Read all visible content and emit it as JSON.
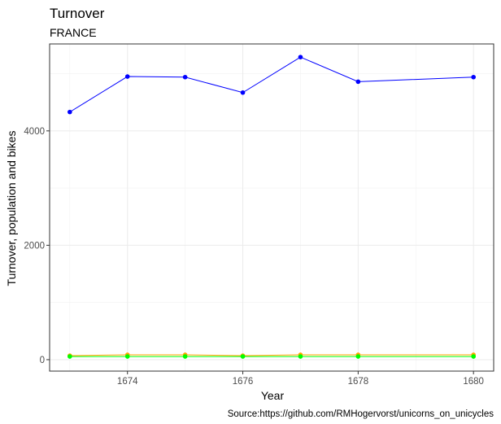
{
  "chart_data": {
    "type": "line",
    "title": "Turnover",
    "subtitle": "FRANCE",
    "xlabel": "Year",
    "ylabel": "Turnover, population and bikes",
    "caption": "Source:https://github.com/RMHogervorst/unicorns_on_unicycles",
    "x": [
      1673,
      1674,
      1675,
      1676,
      1677,
      1678,
      1680
    ],
    "x_ticks": [
      1674,
      1676,
      1678,
      1680
    ],
    "y_ticks": [
      0,
      2000,
      4000
    ],
    "xlim": [
      1672.65,
      1680.35
    ],
    "ylim": [
      -200,
      5520
    ],
    "grid": true,
    "legend": "none",
    "series": [
      {
        "color": "#0000ff",
        "values": [
          4330,
          4950,
          4940,
          4670,
          5290,
          4860,
          4940
        ]
      },
      {
        "color": "#ffa500",
        "values": [
          70,
          85,
          85,
          70,
          85,
          85,
          85
        ]
      },
      {
        "color": "#00ff00",
        "values": [
          55,
          55,
          55,
          55,
          55,
          55,
          55
        ]
      }
    ]
  }
}
